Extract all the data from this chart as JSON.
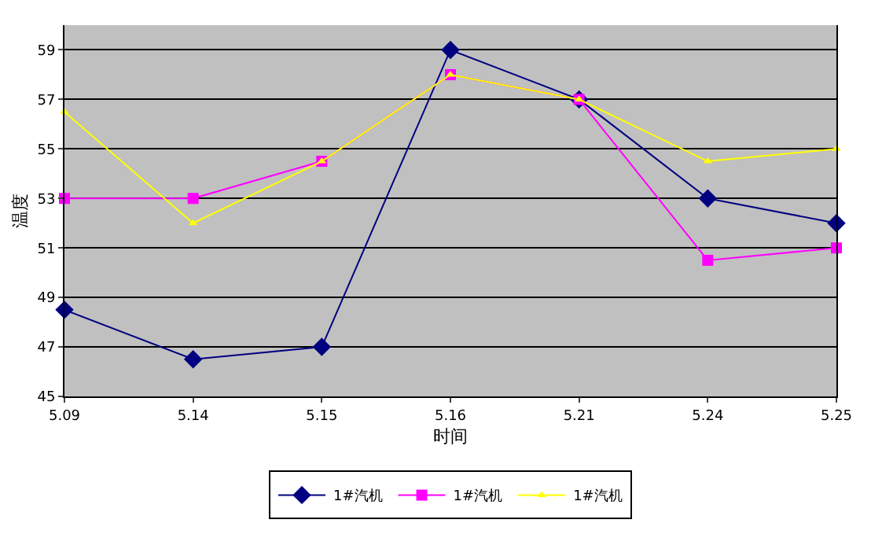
{
  "chart_data": {
    "type": "line",
    "xlabel": "时间",
    "ylabel": "温度",
    "categories": [
      "5.09",
      "5.14",
      "5.15",
      "5.16",
      "5.21",
      "5.24",
      "5.25"
    ],
    "series": [
      {
        "name": "1#汽机",
        "color": "#000080",
        "marker": "diamond",
        "values": [
          48.5,
          46.5,
          47,
          59,
          57,
          53,
          52
        ]
      },
      {
        "name": "1#汽机",
        "color": "#ff00ff",
        "marker": "square",
        "values": [
          53,
          53,
          54.5,
          58,
          57,
          50.5,
          51
        ]
      },
      {
        "name": "1#汽机",
        "color": "#ffff00",
        "marker": "triangle",
        "values": [
          56.5,
          52,
          54.5,
          58,
          57,
          54.5,
          55
        ]
      }
    ],
    "ylim": [
      45,
      60
    ],
    "yticks": [
      45,
      47,
      49,
      51,
      53,
      55,
      57,
      59
    ],
    "grid": "y",
    "legend": "bottom"
  }
}
